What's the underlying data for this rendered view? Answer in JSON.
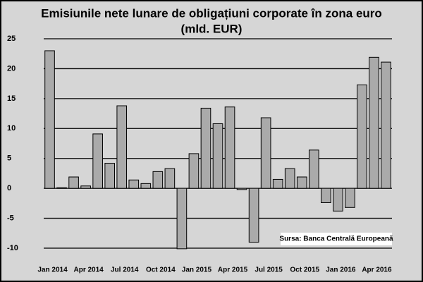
{
  "chart_data": {
    "type": "bar",
    "title": "Emisiunile nete lunare de obligațiuni corporate în zona euro",
    "subtitle": "(mld. EUR)",
    "annotation": "Sursa: Banca Centrală Europeană",
    "categories": [
      "Jan 2014",
      null,
      null,
      "Apr 2014",
      null,
      null,
      "Jul 2014",
      null,
      null,
      "Oct 2014",
      null,
      null,
      "Jan 2015",
      null,
      null,
      "Apr 2015",
      null,
      null,
      "Jul 2015",
      null,
      null,
      "Oct 2015",
      null,
      null,
      "Jan 2016",
      null,
      null,
      "Apr 2016",
      null
    ],
    "values": [
      23,
      0.1,
      1.9,
      0.4,
      9.1,
      4.2,
      13.8,
      1.4,
      0.8,
      2.8,
      3.3,
      -10.1,
      5.8,
      13.4,
      10.8,
      13.6,
      -0.2,
      -9,
      11.8,
      1.5,
      3.3,
      1.9,
      6.4,
      -2.4,
      -3.8,
      -3.2,
      17.3,
      21.9,
      21.1
    ],
    "color": "#aaaaaa",
    "ylim": [
      -10,
      25
    ],
    "yticks": [
      -10,
      -5,
      0,
      5,
      10,
      15,
      20,
      25
    ],
    "grid": true
  }
}
